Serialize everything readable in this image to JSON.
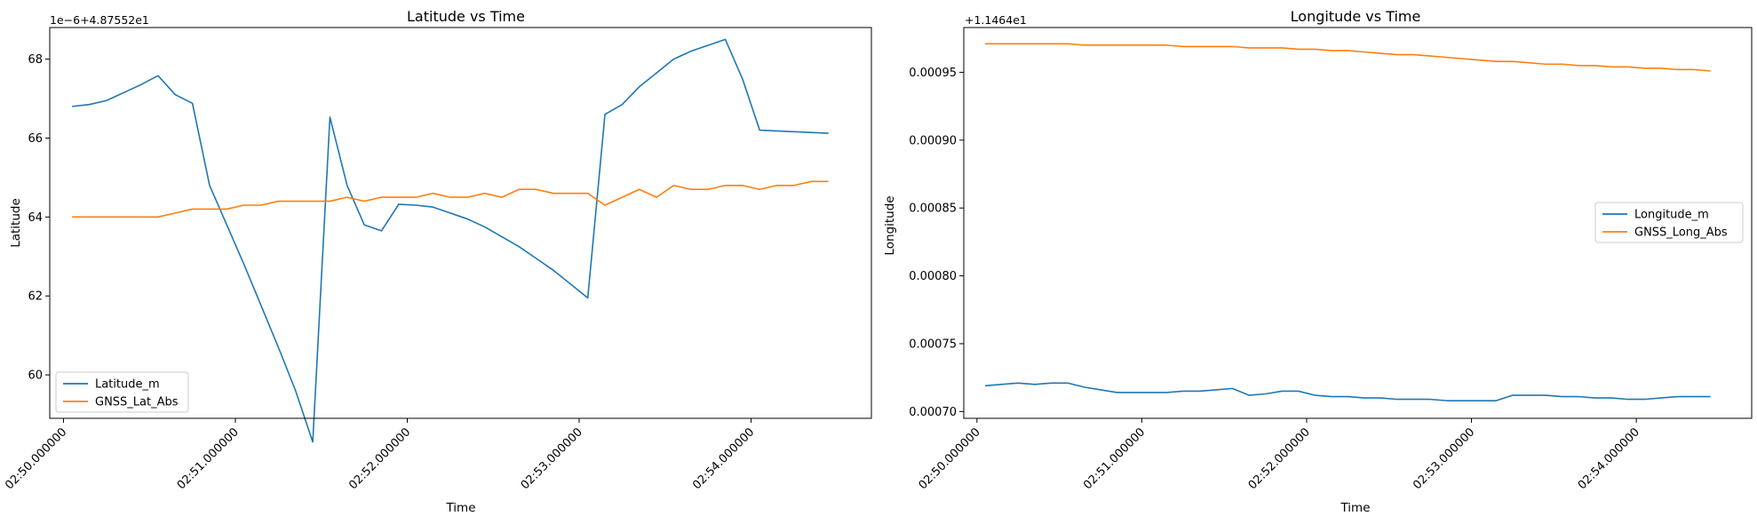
{
  "colors": {
    "series_1": "#1f77b4",
    "series_2": "#ff7f0e",
    "axis": "#000000",
    "background": "#ffffff"
  },
  "chart_data": [
    {
      "type": "line",
      "title": "Latitude vs Time",
      "xlabel": "Time",
      "ylabel": "Latitude",
      "offset_text": "1e−6+4.87552e1",
      "x_ticks": [
        "02:50.000000",
        "02:51.000000",
        "02:52.000000",
        "02:53.000000",
        "02:54.000000"
      ],
      "y_ticks": [
        "60",
        "62",
        "64",
        "66",
        "68"
      ],
      "xlim": [
        -0.08,
        4.7
      ],
      "ylim": [
        58.9,
        68.8
      ],
      "grid": false,
      "legend_position": "lower left",
      "series": [
        {
          "name": "Latitude_m",
          "color": "#1f77b4",
          "x": [
            0.05,
            0.15,
            0.25,
            0.35,
            0.45,
            0.55,
            0.65,
            0.75,
            0.85,
            0.95,
            1.05,
            1.15,
            1.25,
            1.35,
            1.45,
            1.55,
            1.65,
            1.75,
            1.85,
            1.95,
            2.05,
            2.15,
            2.25,
            2.35,
            2.45,
            2.55,
            2.65,
            2.75,
            2.85,
            2.95,
            3.05,
            3.15,
            3.25,
            3.35,
            3.45,
            3.55,
            3.65,
            3.75,
            3.85,
            3.95,
            4.05,
            4.15,
            4.25,
            4.35,
            4.45
          ],
          "y": [
            66.8,
            66.85,
            66.95,
            67.15,
            67.35,
            67.58,
            67.1,
            66.88,
            64.8,
            63.8,
            62.8,
            61.75,
            60.7,
            59.6,
            58.3,
            66.53,
            64.8,
            63.8,
            63.65,
            64.32,
            64.3,
            64.25,
            64.1,
            63.95,
            63.75,
            63.5,
            63.25,
            62.95,
            62.65,
            62.3,
            61.95,
            66.6,
            66.85,
            67.3,
            67.65,
            68.0,
            68.2,
            68.35,
            68.5,
            67.5,
            66.2,
            66.18,
            66.16,
            66.14,
            66.12
          ],
          "note_x_shift": 0
        },
        {
          "name": "GNSS_Lat_Abs",
          "color": "#ff7f0e",
          "x": [
            0.05,
            0.15,
            0.25,
            0.35,
            0.45,
            0.55,
            0.65,
            0.75,
            0.85,
            0.95,
            1.05,
            1.15,
            1.25,
            1.35,
            1.45,
            1.55,
            1.65,
            1.75,
            1.85,
            1.95,
            2.05,
            2.15,
            2.25,
            2.35,
            2.45,
            2.55,
            2.65,
            2.75,
            2.85,
            2.95,
            3.05,
            3.15,
            3.25,
            3.35,
            3.45,
            3.55,
            3.65,
            3.75,
            3.85,
            3.95,
            4.05,
            4.15,
            4.25,
            4.35,
            4.45
          ],
          "y": [
            64.0,
            64.0,
            64.0,
            64.0,
            64.0,
            64.0,
            64.1,
            64.2,
            64.2,
            64.2,
            64.3,
            64.3,
            64.4,
            64.4,
            64.4,
            64.4,
            64.5,
            64.4,
            64.5,
            64.5,
            64.5,
            64.6,
            64.5,
            64.5,
            64.6,
            64.5,
            64.7,
            64.7,
            64.6,
            64.6,
            64.6,
            64.3,
            64.5,
            64.7,
            64.5,
            64.8,
            64.7,
            64.7,
            64.8,
            64.8,
            64.7,
            64.8,
            64.8,
            64.9,
            64.9
          ]
        }
      ]
    },
    {
      "type": "line",
      "title": "Longitude vs Time",
      "xlabel": "Time",
      "ylabel": "Longitude",
      "offset_text": "+1.1464e1",
      "x_ticks": [
        "02:50.000000",
        "02:51.000000",
        "02:52.000000",
        "02:53.000000",
        "02:54.000000"
      ],
      "y_ticks": [
        "0.00070",
        "0.00075",
        "0.00080",
        "0.00085",
        "0.00090",
        "0.00095"
      ],
      "xlim": [
        -0.08,
        4.7
      ],
      "ylim": [
        0.000695,
        0.000983
      ],
      "grid": false,
      "legend_position": "center right",
      "series": [
        {
          "name": "Longitude_m",
          "color": "#1f77b4",
          "x": [
            0.05,
            0.15,
            0.25,
            0.35,
            0.45,
            0.55,
            0.65,
            0.75,
            0.85,
            0.95,
            1.05,
            1.15,
            1.25,
            1.35,
            1.45,
            1.55,
            1.65,
            1.75,
            1.85,
            1.95,
            2.05,
            2.15,
            2.25,
            2.35,
            2.45,
            2.55,
            2.65,
            2.75,
            2.85,
            2.95,
            3.05,
            3.15,
            3.25,
            3.35,
            3.45,
            3.55,
            3.65,
            3.75,
            3.85,
            3.95,
            4.05,
            4.15,
            4.25,
            4.35,
            4.45
          ],
          "y": [
            0.000719,
            0.00072,
            0.000721,
            0.00072,
            0.000721,
            0.000721,
            0.000718,
            0.000716,
            0.000714,
            0.000714,
            0.000714,
            0.000714,
            0.000715,
            0.000715,
            0.000716,
            0.000717,
            0.000712,
            0.000713,
            0.000715,
            0.000715,
            0.000712,
            0.000711,
            0.000711,
            0.00071,
            0.00071,
            0.000709,
            0.000709,
            0.000709,
            0.000708,
            0.000708,
            0.000708,
            0.000708,
            0.000712,
            0.000712,
            0.000712,
            0.000711,
            0.000711,
            0.00071,
            0.00071,
            0.000709,
            0.000709,
            0.00071,
            0.000711,
            0.000711,
            0.000711
          ]
        },
        {
          "name": "GNSS_Long_Abs",
          "color": "#ff7f0e",
          "x": [
            0.05,
            0.15,
            0.25,
            0.35,
            0.45,
            0.55,
            0.65,
            0.75,
            0.85,
            0.95,
            1.05,
            1.15,
            1.25,
            1.35,
            1.45,
            1.55,
            1.65,
            1.75,
            1.85,
            1.95,
            2.05,
            2.15,
            2.25,
            2.35,
            2.45,
            2.55,
            2.65,
            2.75,
            2.85,
            2.95,
            3.05,
            3.15,
            3.25,
            3.35,
            3.45,
            3.55,
            3.65,
            3.75,
            3.85,
            3.95,
            4.05,
            4.15,
            4.25,
            4.35,
            4.45
          ],
          "y": [
            0.000971,
            0.000971,
            0.000971,
            0.000971,
            0.000971,
            0.000971,
            0.00097,
            0.00097,
            0.00097,
            0.00097,
            0.00097,
            0.00097,
            0.000969,
            0.000969,
            0.000969,
            0.000969,
            0.000968,
            0.000968,
            0.000968,
            0.000967,
            0.000967,
            0.000966,
            0.000966,
            0.000965,
            0.000964,
            0.000963,
            0.000963,
            0.000962,
            0.000961,
            0.00096,
            0.000959,
            0.000958,
            0.000958,
            0.000957,
            0.000956,
            0.000956,
            0.000955,
            0.000955,
            0.000954,
            0.000954,
            0.000953,
            0.000953,
            0.000952,
            0.000952,
            0.000951
          ]
        }
      ]
    }
  ]
}
